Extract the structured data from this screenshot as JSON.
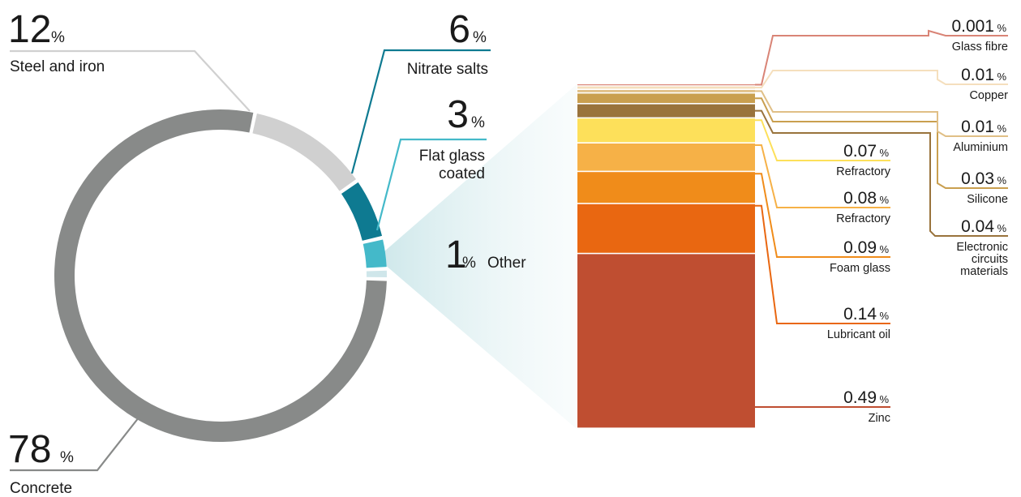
{
  "chart_data": [
    {
      "type": "pie",
      "variant": "donut",
      "slices": [
        {
          "label": "Steel and iron",
          "value": 12,
          "color": "#d0d0d0"
        },
        {
          "label": "Nitrate salts",
          "value": 6,
          "color": "#0e7a91"
        },
        {
          "label": "Flat glass coated",
          "value": 3,
          "color": "#44b9c9"
        },
        {
          "label": "Other",
          "value": 1,
          "color": "#cfe6ea"
        },
        {
          "label": "Concrete",
          "value": 78,
          "color": "#888a89"
        }
      ],
      "display": {
        "steel_value": "12",
        "steel_unit": "%",
        "steel_label": "Steel and iron",
        "nitrate_value": "6",
        "nitrate_unit": "%",
        "nitrate_label": "Nitrate salts",
        "glass_value": "3",
        "glass_unit": "%",
        "glass_label_line1": "Flat glass",
        "glass_label_line2": "coated",
        "other_value": "1",
        "other_unit": "%",
        "other_label": "Other",
        "concrete_value": "78",
        "concrete_unit": "%",
        "concrete_label": "Concrete"
      }
    },
    {
      "type": "bar",
      "variant": "stacked-column",
      "unit": "%",
      "segments": [
        {
          "label": "Zinc",
          "value": "0.49",
          "color": "#bf4e31"
        },
        {
          "label": "Lubricant oil",
          "value": "0.14",
          "color": "#e96711"
        },
        {
          "label": "Foam glass",
          "value": "0.09",
          "color": "#f08c1a"
        },
        {
          "label": "Refractory",
          "value": "0.08",
          "color": "#f6b147"
        },
        {
          "label": "Refractory",
          "value": "0.07",
          "color": "#fde05a"
        },
        {
          "label": "Electronic circuits materials",
          "label_lines": [
            "Electronic",
            "circuits",
            "materials"
          ],
          "value": "0.04",
          "color": "#99733c"
        },
        {
          "label": "Silicone",
          "value": "0.03",
          "color": "#c99f4f"
        },
        {
          "label": "Aluminium",
          "value": "0.01",
          "color": "#e0bf86"
        },
        {
          "label": "Copper",
          "value": "0.01",
          "color": "#f5dfbd"
        },
        {
          "label": "Glass fibre",
          "value": "0.001",
          "color": "#d98476"
        }
      ]
    }
  ]
}
